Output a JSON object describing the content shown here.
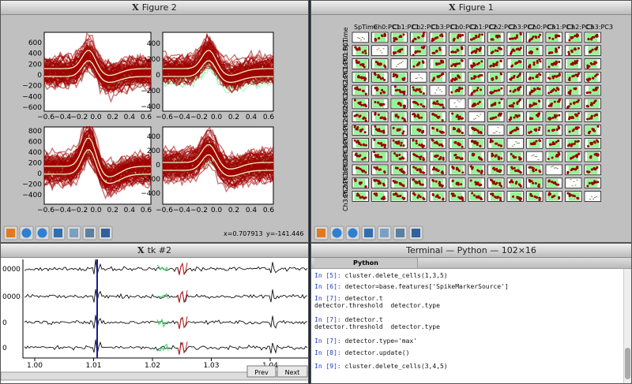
{
  "figure2": {
    "title": "Figure 2",
    "plots": [
      {
        "yticks": [
          "600",
          "400",
          "200",
          "0",
          "−200",
          "−400",
          "−600"
        ]
      },
      {
        "yticks": [
          "400",
          "200",
          "0",
          "−200",
          "−400"
        ]
      },
      {
        "yticks": [
          "800",
          "600",
          "400",
          "200",
          "0",
          "−200",
          "−400"
        ]
      },
      {
        "yticks": [
          "400",
          "200",
          "0",
          "−200",
          "−400"
        ]
      }
    ],
    "xticks": [
      "−0.6",
      "−0.4",
      "−0.2",
      "0.0",
      "0.2",
      "0.4",
      "0.6"
    ],
    "status_x": "x=0.707913",
    "status_y": "y=-141.446"
  },
  "figure1": {
    "title": "Figure 1",
    "labels": [
      "SpTime",
      "Ch0:PC1",
      "Ch1:PC1",
      "Ch2:PC1",
      "Ch3:PC1",
      "Ch0:PC2",
      "Ch1:PC2",
      "Ch2:PC2",
      "Ch3:PC2",
      "Ch0:PC3",
      "Ch1:PC3",
      "Ch2:PC3",
      "Ch3:PC3"
    ]
  },
  "tk": {
    "title": "tk #2",
    "ylabels": [
      "0000",
      "0000",
      "0",
      "0"
    ],
    "xticks": [
      "1.00",
      "1.01",
      "1.02",
      "1.03",
      "1.04"
    ],
    "prev": "Prev",
    "next": "Next"
  },
  "terminal": {
    "title": "Terminal — Python — 102×16",
    "tab": "Python",
    "lines": [
      {
        "prompt": "In [5]:",
        "code": "cluster.delete_cells(1,3,5)"
      },
      {
        "prompt": "In [6]:",
        "code": "detector=base.features['SpikeMarkerSource']"
      },
      {
        "prompt": "In [7]:",
        "code": "detector.t"
      },
      {
        "output": "detector.threshold  detector.type"
      },
      {
        "prompt": "In [7]:",
        "code": "detector.t"
      },
      {
        "output": "detector.threshold  detector.type"
      },
      {
        "prompt": "In [7]:",
        "code": "detector.type='max'"
      },
      {
        "prompt": "In [8]:",
        "code": "detector.update()"
      },
      {
        "prompt": "In [9]:",
        "code": "cluster.delete_cells(3,4,5)"
      }
    ]
  }
}
